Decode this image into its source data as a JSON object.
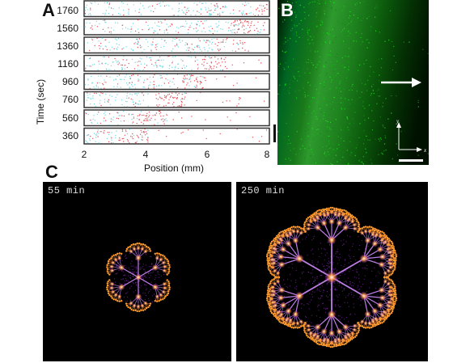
{
  "panel_a": {
    "label": "A",
    "y_axis_title": "Time (sec)",
    "x_axis_title": "Position (mm)",
    "y_ticks": [
      "1760",
      "1560",
      "1360",
      "1160",
      "960",
      "760",
      "560",
      "360"
    ],
    "x_ticks": [
      "2",
      "4",
      "6",
      "8"
    ],
    "colors": {
      "cyan": "#5fd3e0",
      "red": "#e8333f",
      "frame": "#333333"
    }
  },
  "panel_b": {
    "label": "B",
    "axis_y_label": "y",
    "axis_x_label": "x",
    "colors": {
      "signal": "#2fb52f",
      "background": "#000000",
      "arrow": "#ffffff"
    }
  },
  "panel_c": {
    "label": "C",
    "left_time": "55 min",
    "right_time": "250 min",
    "colors": {
      "glow_core": "#ffffff",
      "glow_mid": "#ff9a2e",
      "glow_outer": "#9b2fd1",
      "background": "#000000"
    }
  }
}
